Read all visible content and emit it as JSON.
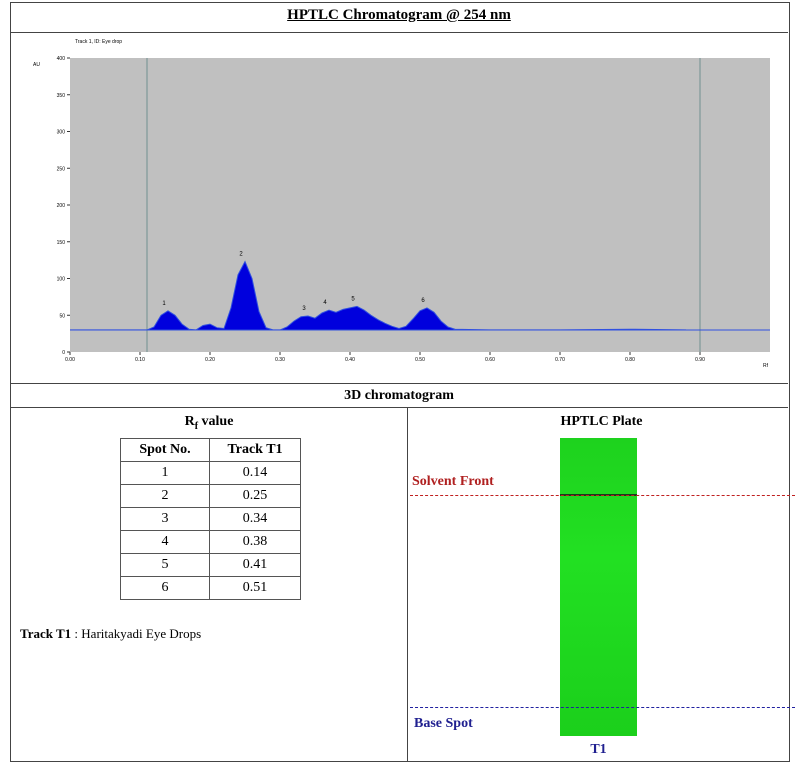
{
  "header": {
    "title": "HPTLC Chromatogram @ 254 nm"
  },
  "chart_data": {
    "type": "area",
    "title": "Track 1, ID: Eye drop",
    "y_label": "AU",
    "x_label": "Rf",
    "color": "#0000dd",
    "x": [
      0.0,
      0.1,
      0.11,
      0.12,
      0.13,
      0.14,
      0.15,
      0.16,
      0.17,
      0.18,
      0.19,
      0.2,
      0.21,
      0.22,
      0.23,
      0.24,
      0.25,
      0.26,
      0.27,
      0.28,
      0.29,
      0.3,
      0.31,
      0.32,
      0.33,
      0.34,
      0.35,
      0.36,
      0.37,
      0.38,
      0.39,
      0.4,
      0.41,
      0.42,
      0.43,
      0.44,
      0.45,
      0.46,
      0.47,
      0.48,
      0.49,
      0.5,
      0.51,
      0.52,
      0.53,
      0.54,
      0.55,
      0.6,
      0.7,
      0.8,
      0.88
    ],
    "values": [
      30,
      30,
      30,
      34,
      50,
      56,
      50,
      38,
      31,
      30,
      36,
      38,
      33,
      32,
      60,
      105,
      123,
      100,
      55,
      33,
      30,
      30,
      34,
      42,
      48,
      49,
      46,
      53,
      57,
      54,
      58,
      60,
      62,
      57,
      50,
      44,
      39,
      35,
      32,
      35,
      45,
      56,
      60,
      54,
      42,
      34,
      31,
      30,
      30,
      31,
      30
    ],
    "xlim": [
      0,
      1.0
    ],
    "ylim": [
      0,
      400
    ],
    "xticks": [
      {
        "value": 0,
        "label": "0.00"
      },
      {
        "value": 0.1,
        "label": "0.10"
      },
      {
        "value": 0.2,
        "label": "0.20"
      },
      {
        "value": 0.3,
        "label": "0.30"
      },
      {
        "value": 0.4,
        "label": "0.40"
      },
      {
        "value": 0.5,
        "label": "0.50"
      },
      {
        "value": 0.6,
        "label": "0.60"
      },
      {
        "value": 0.7,
        "label": "0.70"
      },
      {
        "value": 0.8,
        "label": "0.80"
      },
      {
        "value": 0.9,
        "label": "0.90"
      }
    ],
    "yticks": [
      0,
      50,
      100,
      150,
      200,
      250,
      300,
      350,
      400
    ],
    "vlines": [
      0.11,
      0.9
    ],
    "annotations": [
      {
        "label": "1",
        "x": 0.14,
        "y": 56
      },
      {
        "label": "2",
        "x": 0.25,
        "y": 123
      },
      {
        "label": "3",
        "x": 0.34,
        "y": 49
      },
      {
        "label": "4",
        "x": 0.37,
        "y": 57
      },
      {
        "label": "5",
        "x": 0.41,
        "y": 62
      },
      {
        "label": "6",
        "x": 0.51,
        "y": 60
      }
    ]
  },
  "section": {
    "title": "3D chromatogram"
  },
  "rf": {
    "heading_main": "R",
    "heading_sub": "f",
    "heading_rest": " value",
    "columns": [
      "Spot No.",
      "Track T1"
    ],
    "rows": [
      [
        "1",
        "0.14"
      ],
      [
        "2",
        "0.25"
      ],
      [
        "3",
        "0.34"
      ],
      [
        "4",
        "0.38"
      ],
      [
        "5",
        "0.41"
      ],
      [
        "6",
        "0.51"
      ]
    ],
    "note_label": "Track T1",
    "note_text": " : Haritakyadi Eye Drops"
  },
  "plate": {
    "title": "HPTLC Plate",
    "solvent_front": "Solvent Front",
    "base_spot": "Base Spot",
    "track": "T1"
  }
}
